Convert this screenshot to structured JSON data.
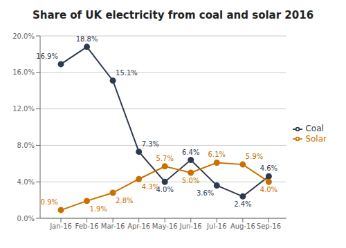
{
  "chart_data": {
    "type": "line",
    "title": "Share of UK electricity from coal and solar 2016",
    "categories": [
      "Jan-16",
      "Feb-16",
      "Mar-16",
      "Apr-16",
      "May-16",
      "Jun-16",
      "Jul-16",
      "Aug-16",
      "Sep-16"
    ],
    "series": [
      {
        "name": "Coal",
        "color": "#2e3a4e",
        "marker": "circle",
        "values": [
          16.9,
          18.8,
          15.1,
          7.3,
          4.0,
          6.4,
          3.6,
          2.4,
          4.6
        ],
        "value_labels": [
          "16.9%",
          "18.8%",
          "15.1%",
          "7.3%",
          "4.0%",
          "6.4%",
          "3.6%",
          "2.4%",
          "4.6%"
        ]
      },
      {
        "name": "Solar",
        "color": "#c87000",
        "marker": "circle",
        "values": [
          0.9,
          1.9,
          2.8,
          4.3,
          5.7,
          5.0,
          6.1,
          5.9,
          4.0
        ],
        "value_labels": [
          "0.9%",
          "1.9%",
          "2.8%",
          "4.3%",
          "5.7%",
          "5.0%",
          "6.1%",
          "5.9%",
          "4.0%"
        ]
      }
    ],
    "ylim": [
      0,
      20
    ],
    "yticks": [
      {
        "value": 0,
        "label": "0.0%"
      },
      {
        "value": 4,
        "label": "4.0%"
      },
      {
        "value": 8,
        "label": "8.0%"
      },
      {
        "value": 12,
        "label": "12.0%"
      },
      {
        "value": 16,
        "label": "16.0%"
      },
      {
        "value": 20,
        "label": "20.0%"
      }
    ],
    "grid": true,
    "legend": "right",
    "data_labels": true
  }
}
